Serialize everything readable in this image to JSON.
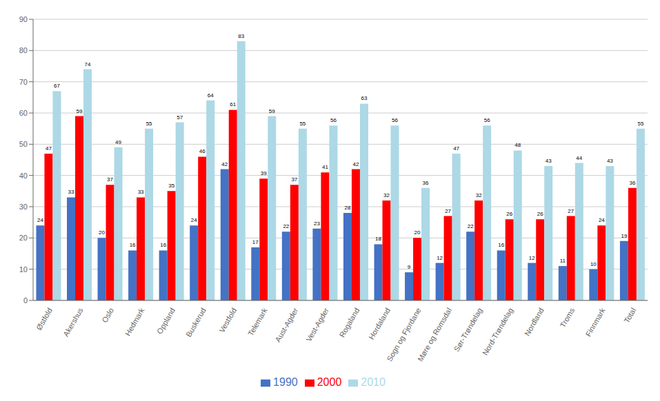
{
  "chart_data": {
    "type": "bar",
    "categories": [
      "Østfold",
      "Akershus",
      "Oslo",
      "Hedmark",
      "Oppland",
      "Buskerud",
      "Vestfold",
      "Telemark",
      "Aust-Agder",
      "Vest-Agder",
      "Rogaland",
      "Hordaland",
      "Sogn og Fjordane",
      "Møre og Romsdal",
      "Sør-Trøndelag",
      "Nord-Trøndelag",
      "Nordland",
      "Troms",
      "Finnmark",
      "Total"
    ],
    "series": [
      {
        "name": "1990",
        "color": "#4472C4",
        "values": [
          24,
          33,
          20,
          16,
          16,
          24,
          42,
          17,
          22,
          23,
          28,
          18,
          9,
          12,
          22,
          16,
          12,
          11,
          10,
          19
        ]
      },
      {
        "name": "2000",
        "color": "#FF0000",
        "values": [
          47,
          59,
          37,
          33,
          35,
          46,
          61,
          39,
          37,
          41,
          42,
          32,
          20,
          27,
          32,
          26,
          26,
          27,
          24,
          36
        ]
      },
      {
        "name": "2010",
        "color": "#ADD8E6",
        "values": [
          67,
          74,
          49,
          55,
          57,
          64,
          83,
          59,
          55,
          56,
          63,
          56,
          36,
          47,
          56,
          48,
          43,
          44,
          43,
          55
        ]
      }
    ],
    "ylim": [
      0,
      90
    ],
    "yticks": [
      0,
      10,
      20,
      30,
      40,
      50,
      60,
      70,
      80,
      90
    ],
    "grid": true,
    "legend": "bottom",
    "data_labels": true
  }
}
